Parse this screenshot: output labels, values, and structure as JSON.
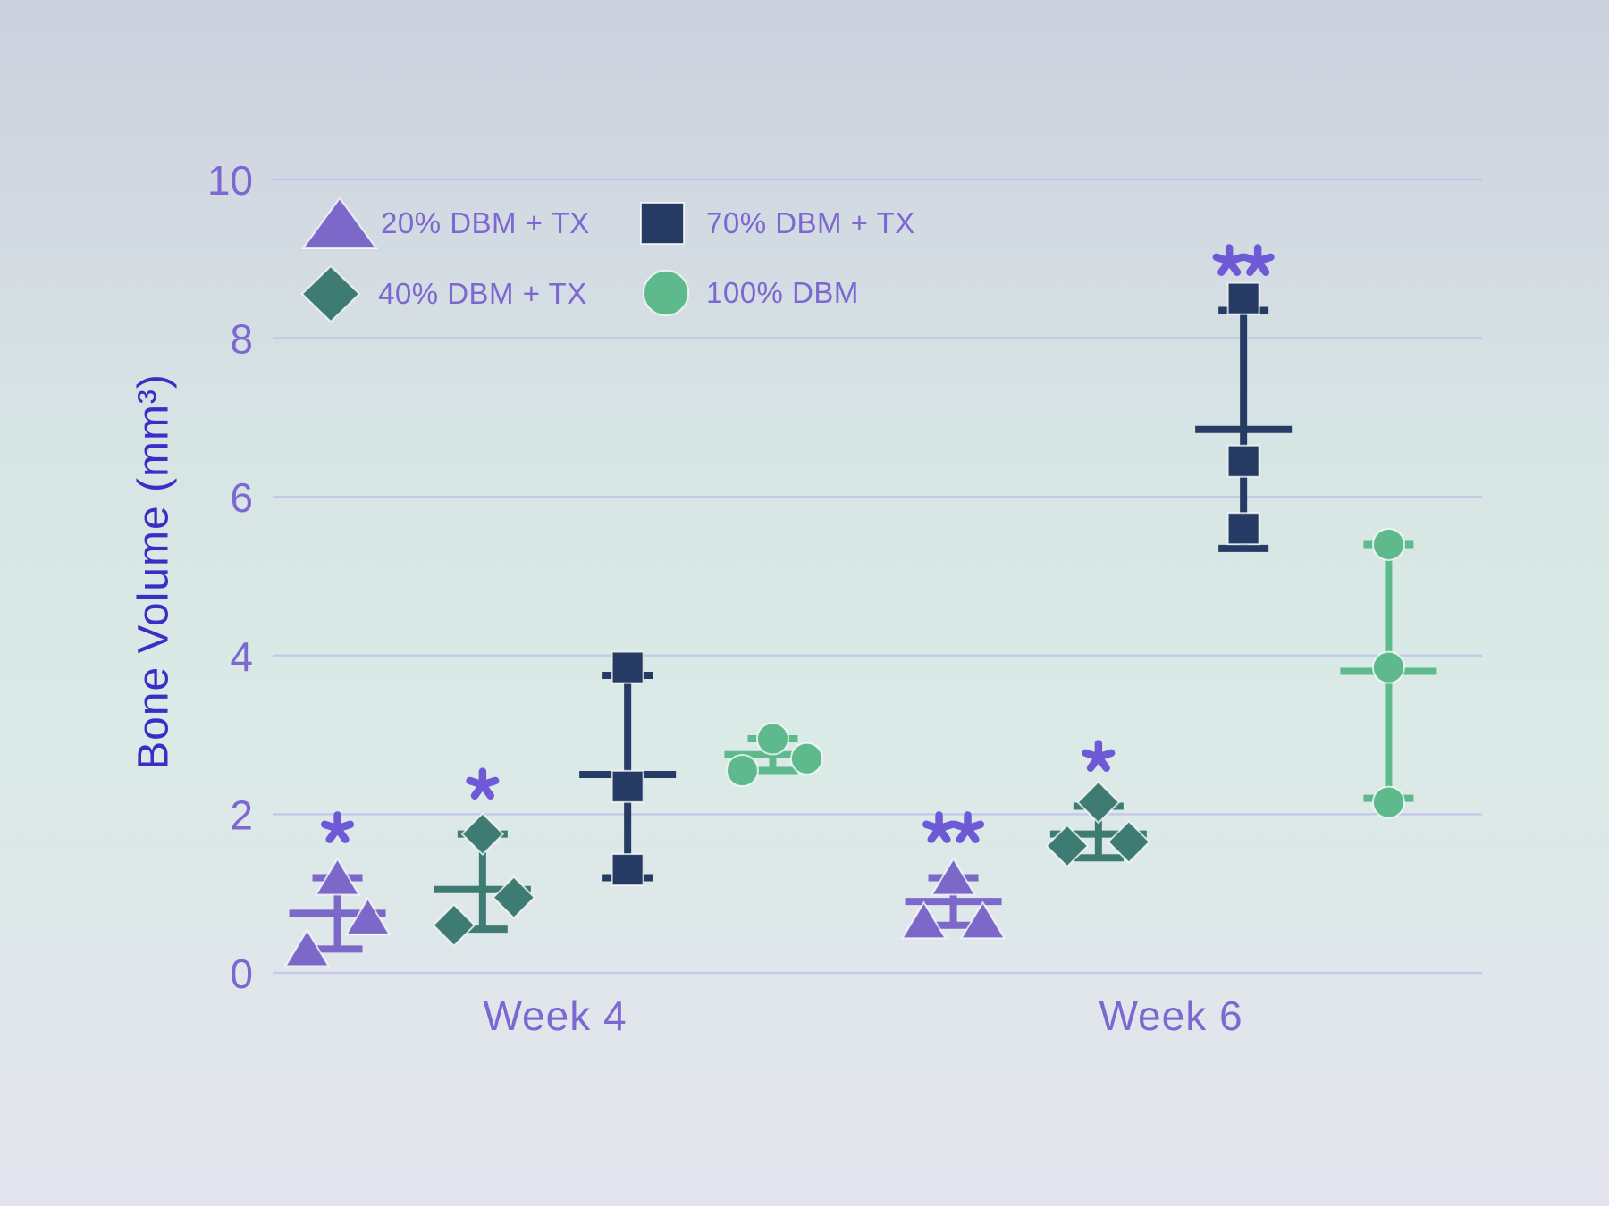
{
  "page": {
    "background_top": "#ccd0dd",
    "background_middle": "#d9eae6",
    "background_bottom": "#e4e4ee"
  },
  "chart_data": {
    "type": "scatter",
    "title": "",
    "xlabel": "",
    "ylabel": "Bone Volume (mm³)",
    "ylim": [
      0,
      10
    ],
    "yticks": [
      "0",
      "2",
      "4",
      "6",
      "8",
      "10"
    ],
    "ytick_values": [
      0,
      2,
      4,
      6,
      8,
      10
    ],
    "categories": [
      "Week 4",
      "Week 6"
    ],
    "grid": true,
    "legend_position": "top-left",
    "colors": {
      "axis_text": "#7d68d2",
      "axis_title": "#3b2ec6",
      "gridline": "#b7aee9",
      "significance": "#6e5ad6",
      "marker_halo": "#ffffff"
    },
    "series": [
      {
        "name": "20% DBM + TX",
        "marker": "triangle",
        "color": "#7b68c9"
      },
      {
        "name": "40% DBM + TX",
        "marker": "diamond",
        "color": "#3e7b72"
      },
      {
        "name": "70% DBM + TX",
        "marker": "square",
        "color": "#253b63"
      },
      {
        "name": "100% DBM",
        "marker": "circle",
        "color": "#5eba8c"
      }
    ],
    "groups": [
      {
        "category": "Week 4",
        "series": "20% DBM + TX",
        "points": [
          {
            "value": 1.2,
            "dx": 0
          },
          {
            "value": 0.7,
            "dx": 34
          },
          {
            "value": 0.3,
            "dx": -34
          }
        ],
        "mean": 0.75,
        "err_high": 1.2,
        "err_low": 0.3,
        "significance": "*"
      },
      {
        "category": "Week 4",
        "series": "40% DBM + TX",
        "points": [
          {
            "value": 1.75,
            "dx": 0
          },
          {
            "value": 0.95,
            "dx": 35
          },
          {
            "value": 0.6,
            "dx": -32
          }
        ],
        "mean": 1.05,
        "err_high": 1.75,
        "err_low": 0.55,
        "significance": "*"
      },
      {
        "category": "Week 4",
        "series": "70% DBM + TX",
        "points": [
          {
            "value": 3.85,
            "dx": 0
          },
          {
            "value": 2.35,
            "dx": 0
          },
          {
            "value": 1.3,
            "dx": 0
          }
        ],
        "mean": 2.5,
        "err_high": 3.75,
        "err_low": 1.2,
        "significance": ""
      },
      {
        "category": "Week 4",
        "series": "100% DBM",
        "points": [
          {
            "value": 2.95,
            "dx": 0
          },
          {
            "value": 2.7,
            "dx": 38
          },
          {
            "value": 2.55,
            "dx": -34
          }
        ],
        "mean": 2.75,
        "err_high": 2.95,
        "err_low": 2.55,
        "significance": ""
      },
      {
        "category": "Week 6",
        "series": "20% DBM + TX",
        "points": [
          {
            "value": 1.2,
            "dx": 0
          },
          {
            "value": 0.65,
            "dx": -33
          },
          {
            "value": 0.65,
            "dx": 33
          }
        ],
        "mean": 0.9,
        "err_high": 1.2,
        "err_low": 0.6,
        "significance": "**"
      },
      {
        "category": "Week 6",
        "series": "40% DBM + TX",
        "points": [
          {
            "value": 2.15,
            "dx": 0
          },
          {
            "value": 1.6,
            "dx": -35
          },
          {
            "value": 1.65,
            "dx": 34
          }
        ],
        "mean": 1.75,
        "err_high": 2.1,
        "err_low": 1.45,
        "significance": "*"
      },
      {
        "category": "Week 6",
        "series": "70% DBM + TX",
        "points": [
          {
            "value": 8.5,
            "dx": 0
          },
          {
            "value": 6.45,
            "dx": 0
          },
          {
            "value": 5.6,
            "dx": 0
          }
        ],
        "mean": 6.85,
        "err_high": 8.35,
        "err_low": 5.35,
        "significance": "**"
      },
      {
        "category": "Week 6",
        "series": "100% DBM",
        "points": [
          {
            "value": 5.4,
            "dx": 0
          },
          {
            "value": 3.85,
            "dx": 0
          },
          {
            "value": 2.15,
            "dx": 0
          }
        ],
        "mean": 3.8,
        "err_high": 5.4,
        "err_low": 2.2,
        "significance": ""
      }
    ]
  }
}
